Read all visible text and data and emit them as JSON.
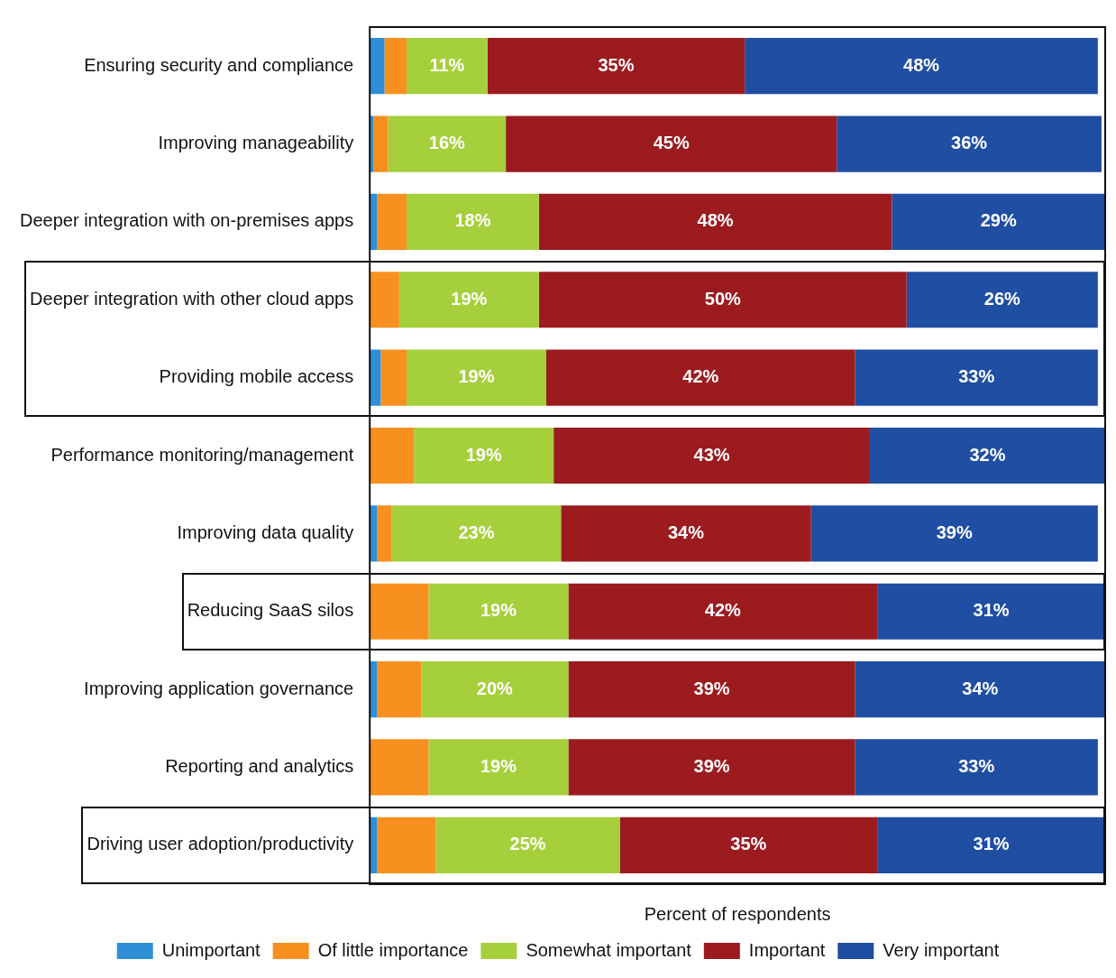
{
  "chart_data": {
    "type": "bar",
    "orientation": "horizontal",
    "stacked": true,
    "categories": [
      "Ensuring security and compliance",
      "Improving manageability",
      "Deeper integration with on-premises apps",
      "Deeper integration with other cloud apps",
      "Providing mobile access",
      "Performance monitoring/management",
      "Improving data quality",
      "Reducing SaaS silos",
      "Improving application governance",
      "Reporting and analytics",
      "Driving user adoption/productivity"
    ],
    "xlabel": "Percent of respondents",
    "legend": "bottom",
    "series": [
      {
        "name": "Unimportant",
        "color": "#2e8fd6",
        "values": [
          2,
          0.5,
          1,
          0,
          1.5,
          0,
          1,
          0,
          1,
          0,
          1
        ]
      },
      {
        "name": "Of little importance",
        "color": "#f7901e",
        "values": [
          3,
          2,
          4,
          4,
          3.5,
          6,
          2,
          8,
          6,
          8,
          8
        ]
      },
      {
        "name": "Somewhat important",
        "color": "#a6cf3c",
        "values": [
          11,
          16,
          18,
          19,
          19,
          19,
          23,
          19,
          20,
          19,
          25
        ],
        "value_labels": [
          "11%",
          "16%",
          "18%",
          "19%",
          "19%",
          "19%",
          "23%",
          "19%",
          "20%",
          "19%",
          "25%"
        ]
      },
      {
        "name": "Important",
        "color": "#9b1b1f",
        "values": [
          35,
          45,
          48,
          50,
          42,
          43,
          34,
          42,
          39,
          39,
          35
        ],
        "value_labels": [
          "35%",
          "45%",
          "48%",
          "50%",
          "42%",
          "43%",
          "34%",
          "42%",
          "39%",
          "39%",
          "35%"
        ]
      },
      {
        "name": "Very important",
        "color": "#1f4ea3",
        "values": [
          48,
          36,
          29,
          26,
          33,
          32,
          39,
          31,
          34,
          33,
          31
        ],
        "value_labels": [
          "48%",
          "36%",
          "29%",
          "26%",
          "33%",
          "32%",
          "39%",
          "31%",
          "34%",
          "33%",
          "31%"
        ]
      }
    ]
  }
}
